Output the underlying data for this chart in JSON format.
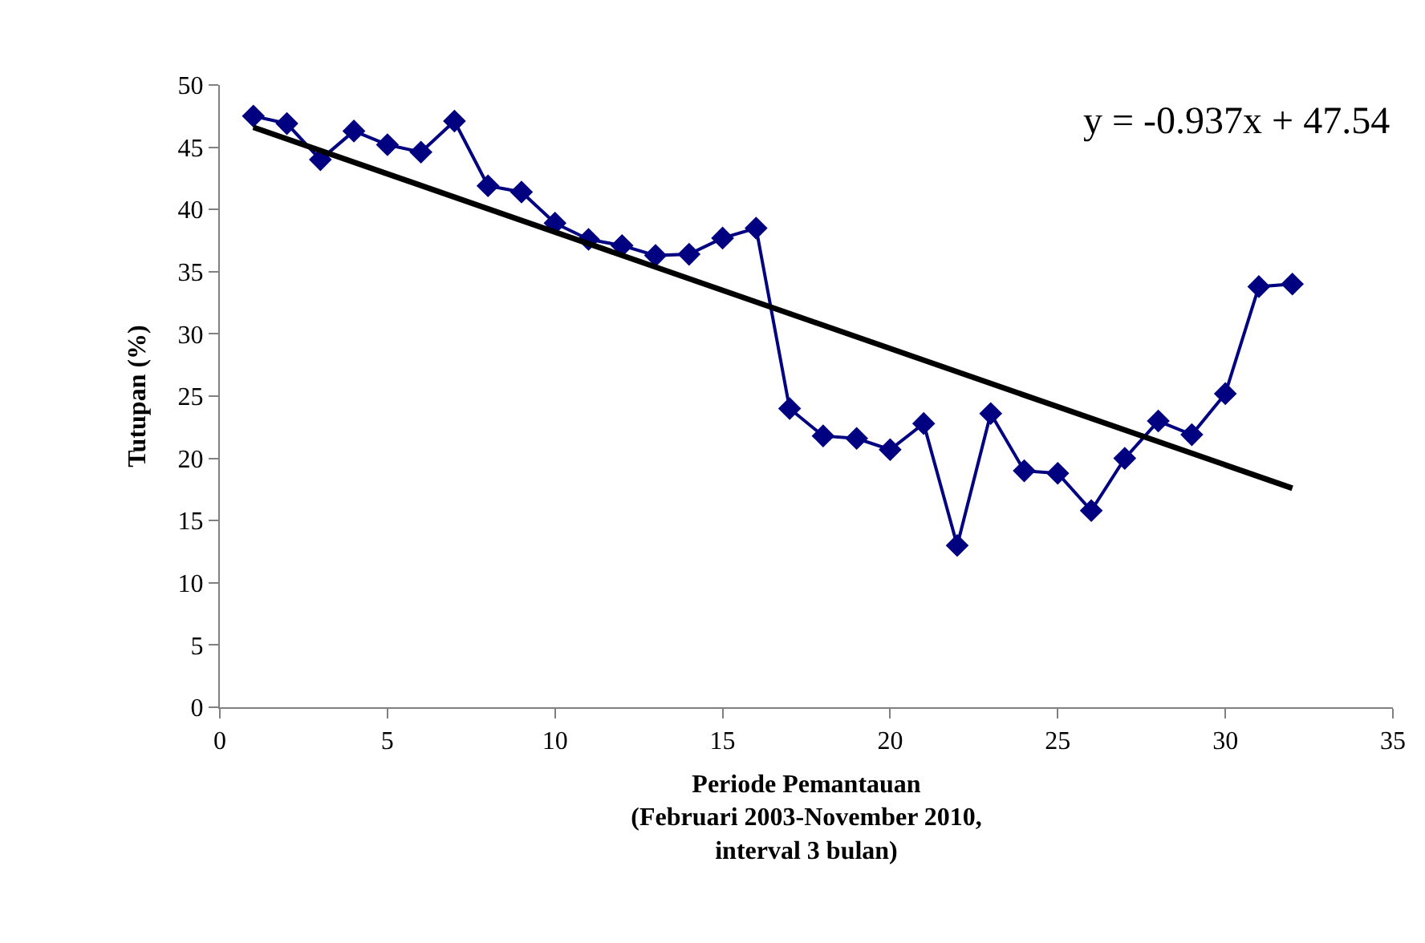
{
  "chart_data": {
    "type": "line",
    "xlabel": "Periode Pemantauan\n(Februari 2003-November 2010,\ninterval 3 bulan)",
    "ylabel": "Tutupan (%)",
    "x": [
      1,
      2,
      3,
      4,
      5,
      6,
      7,
      8,
      9,
      10,
      11,
      12,
      13,
      14,
      15,
      16,
      17,
      18,
      19,
      20,
      21,
      22,
      23,
      24,
      25,
      26,
      27,
      28,
      29,
      30,
      31,
      32
    ],
    "series": [
      {
        "color": "#000080",
        "marker": "diamond",
        "values": [
          47.5,
          46.9,
          44.0,
          46.3,
          45.2,
          44.6,
          47.1,
          41.9,
          41.4,
          38.9,
          37.6,
          37.1,
          36.3,
          36.4,
          37.7,
          38.5,
          24.0,
          21.8,
          21.6,
          20.7,
          22.8,
          13.0,
          23.6,
          19.0,
          18.8,
          15.8,
          20.0,
          23.0,
          21.9,
          25.2,
          33.8,
          34.0
        ]
      },
      {
        "type": "line",
        "color": "#000000",
        "marker": "none",
        "x": [
          1,
          32
        ],
        "values": [
          46.6,
          17.6
        ]
      }
    ],
    "xlim": [
      0,
      35
    ],
    "xticks": [
      0,
      5,
      10,
      15,
      20,
      25,
      30,
      35
    ],
    "ylim": [
      0,
      50
    ],
    "yticks": [
      0,
      5,
      10,
      15,
      20,
      25,
      30,
      35,
      40,
      45,
      50
    ],
    "legend": false,
    "annotations": [
      "y = -0.937x + 47.54"
    ]
  }
}
